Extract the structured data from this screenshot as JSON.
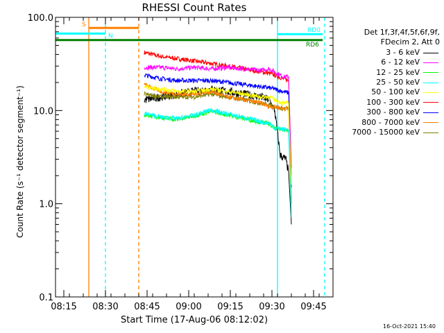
{
  "title": "RHESSI Count Rates",
  "xlabel": "Start Time (17-Aug-06 08:12:02)",
  "ylabel": "Count Rate (s⁻¹ detector segment⁻¹)",
  "footer_timestamp": "16-Oct-2021 15:40",
  "legend": {
    "header_line1": "Det 1f,3f,4f,5f,6f,9f,",
    "header_line2": "FDecim 2, Att 0"
  },
  "attenuator_labels": {
    "s": "S",
    "n": "N",
    "rd0": "RD0",
    "rd6": "RD6"
  },
  "colors": {
    "cyan": "#00ffff",
    "orange": "#ff8000",
    "green": "#008000",
    "plot_axis": "#000000"
  },
  "chart_data": {
    "type": "line",
    "title": "RHESSI Count Rates",
    "xlabel": "Start Time (17-Aug-06 08:12:02)",
    "ylabel": "Count Rate (s⁻¹ detector segment⁻¹)",
    "y_scale": "log",
    "ylim": [
      0.1,
      100.0
    ],
    "xlim": [
      "08:12",
      "09:52"
    ],
    "x_ticks": [
      "08:15",
      "08:30",
      "08:45",
      "09:00",
      "09:15",
      "09:30",
      "09:45"
    ],
    "y_ticks": [
      "0.1",
      "1.0",
      "10.0",
      "100.0"
    ],
    "legend_position": "top-right (outside plot)",
    "series": [
      {
        "name": "3 - 6 keV",
        "color": "#000000",
        "x": [
          "08:44",
          "08:50",
          "08:56",
          "09:02",
          "09:08",
          "09:14",
          "09:20",
          "09:26",
          "09:29",
          "09:31",
          "09:33",
          "09:35",
          "09:36",
          "09:37"
        ],
        "y": [
          13,
          14,
          15,
          16,
          17,
          16,
          15,
          14,
          13,
          10,
          3.3,
          3.0,
          2.2,
          0.6
        ]
      },
      {
        "name": "6 - 12 keV",
        "color": "#ff00ff",
        "x": [
          "08:44",
          "08:50",
          "08:56",
          "09:02",
          "09:08",
          "09:14",
          "09:20",
          "09:26",
          "09:29",
          "09:31",
          "09:34",
          "09:36",
          "09:37"
        ],
        "y": [
          29,
          29,
          28,
          29,
          28,
          29,
          28,
          27,
          28,
          26,
          23,
          23,
          2.0
        ]
      },
      {
        "name": "12 - 25 keV",
        "color": "#00ff00",
        "x": [
          "08:44",
          "08:50",
          "08:56",
          "09:02",
          "09:08",
          "09:14",
          "09:20",
          "09:26",
          "09:29",
          "09:31",
          "09:34",
          "09:36",
          "09:37"
        ],
        "y": [
          9.0,
          8.4,
          8.0,
          8.8,
          9.8,
          9.0,
          8.2,
          7.5,
          7.2,
          6.4,
          6.3,
          6.2,
          0.8
        ]
      },
      {
        "name": "25 - 50 keV",
        "color": "#00ffff",
        "x": [
          "08:44",
          "08:50",
          "08:56",
          "09:02",
          "09:08",
          "09:14",
          "09:20",
          "09:26",
          "09:29",
          "09:31",
          "09:34",
          "09:36",
          "09:37"
        ],
        "y": [
          9.3,
          8.5,
          8.2,
          8.9,
          10.2,
          9.2,
          8.4,
          7.6,
          7.3,
          6.5,
          6.3,
          6.2,
          0.7
        ]
      },
      {
        "name": "50 - 100 keV",
        "color": "#ffff00",
        "x": [
          "08:44",
          "08:50",
          "08:56",
          "09:02",
          "09:08",
          "09:14",
          "09:20",
          "09:26",
          "09:29",
          "09:31",
          "09:34",
          "09:36",
          "09:37"
        ],
        "y": [
          18,
          17,
          16,
          16,
          17,
          16,
          15,
          14,
          14,
          13,
          12,
          12,
          1.6
        ]
      },
      {
        "name": "100 - 300 keV",
        "color": "#ff0000",
        "x": [
          "08:44",
          "08:50",
          "08:56",
          "09:02",
          "09:08",
          "09:14",
          "09:20",
          "09:26",
          "09:29",
          "09:31",
          "09:34",
          "09:36",
          "09:37"
        ],
        "y": [
          42,
          38,
          36,
          34,
          32,
          30,
          28,
          26,
          25,
          24,
          22,
          21,
          2.4
        ]
      },
      {
        "name": "300 - 800 keV",
        "color": "#0000ff",
        "x": [
          "08:44",
          "08:50",
          "08:56",
          "09:02",
          "09:08",
          "09:14",
          "09:20",
          "09:26",
          "09:29",
          "09:31",
          "09:34",
          "09:36",
          "09:37"
        ],
        "y": [
          24,
          22,
          21,
          21,
          21,
          20,
          19,
          18,
          17.5,
          17,
          16,
          15.5,
          1.5
        ]
      },
      {
        "name": "800 - 7000 keV",
        "color": "#ff8000",
        "x": [
          "08:44",
          "08:50",
          "08:56",
          "09:02",
          "09:08",
          "09:14",
          "09:20",
          "09:26",
          "09:29",
          "09:31",
          "09:34",
          "09:36",
          "09:37"
        ],
        "y": [
          19,
          16,
          15,
          15,
          16,
          14,
          13,
          12,
          11,
          11,
          10.5,
          10.5,
          1.1
        ]
      },
      {
        "name": "7000 - 15000 keV",
        "color": "#808000",
        "x": [
          "08:44",
          "08:50",
          "08:56",
          "09:02",
          "09:08",
          "09:14",
          "09:20",
          "09:26",
          "09:29",
          "09:31",
          "09:34",
          "09:36",
          "09:37"
        ],
        "y": [
          15,
          14,
          14,
          14,
          15,
          14,
          13,
          12,
          11.5,
          11,
          10.5,
          10.5,
          1.0
        ]
      }
    ],
    "annotations": [
      {
        "label": "S",
        "color": "#ff8000",
        "x": [
          "08:24",
          "08:42"
        ],
        "y": 77,
        "type": "segment"
      },
      {
        "label": "N",
        "color": "#00ffff",
        "x": [
          "08:12",
          "08:30"
        ],
        "y": 67,
        "type": "segment"
      },
      {
        "label": "RD0",
        "color": "#00ffff",
        "x": [
          "09:32",
          "09:49"
        ],
        "y": 66,
        "type": "segment"
      },
      {
        "label": "RD6",
        "color": "#008000",
        "x": [
          "08:12",
          "09:49"
        ],
        "y": 57,
        "type": "segment"
      },
      {
        "color": "#ff8000",
        "x": "08:24",
        "style": "solid",
        "type": "vline"
      },
      {
        "color": "#00ffff",
        "x": "08:30",
        "style": "dashed",
        "type": "vline"
      },
      {
        "color": "#ff8000",
        "x": "08:42",
        "style": "dashed",
        "type": "vline"
      },
      {
        "color": "#00ffff",
        "x": "09:32",
        "style": "solid",
        "type": "vline"
      },
      {
        "color": "#00ffff",
        "x": "09:49",
        "style": "dashed",
        "type": "vline"
      }
    ]
  }
}
